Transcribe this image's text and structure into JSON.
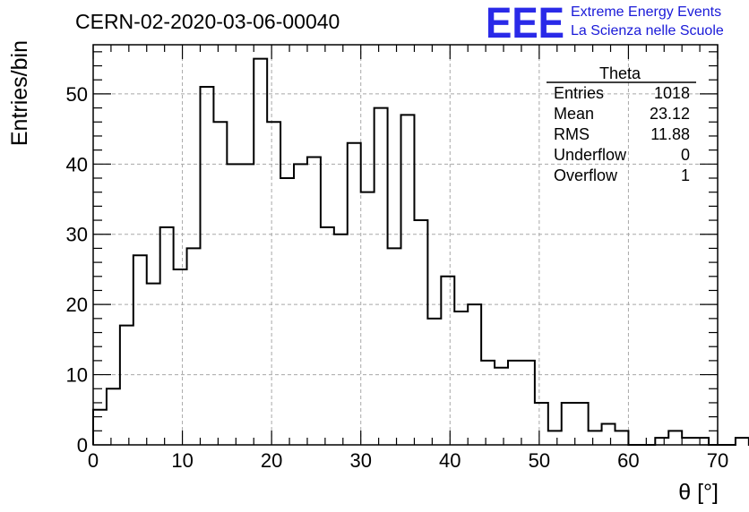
{
  "chart_data": {
    "type": "bar",
    "title": "CERN-02-2020-03-06-00040",
    "xlabel": "θ [°]",
    "ylabel": "Entries/bin",
    "xlim": [
      0,
      70
    ],
    "ylim": [
      0,
      57
    ],
    "grid": true,
    "bin_width": 1.5,
    "x_ticks": [
      0,
      10,
      20,
      30,
      40,
      50,
      60,
      70
    ],
    "y_ticks": [
      0,
      10,
      20,
      30,
      40,
      50
    ],
    "values": [
      5,
      8,
      17,
      27,
      23,
      31,
      25,
      28,
      51,
      46,
      40,
      40,
      55,
      46,
      38,
      40,
      41,
      31,
      30,
      43,
      36,
      48,
      28,
      47,
      32,
      18,
      24,
      19,
      20,
      12,
      11,
      12,
      12,
      6,
      2,
      6,
      6,
      2,
      3,
      2,
      0,
      0,
      1,
      2,
      1,
      1,
      0,
      0,
      1,
      0
    ]
  },
  "stats_box": {
    "title": "Theta",
    "rows": [
      {
        "label": "Entries",
        "value": "1018"
      },
      {
        "label": "Mean",
        "value": "23.12"
      },
      {
        "label": "RMS",
        "value": "11.88"
      },
      {
        "label": "Underflow",
        "value": "0"
      },
      {
        "label": "Overflow",
        "value": "1"
      }
    ]
  },
  "logo": {
    "mark": "EEE",
    "line1": "Extreme Energy Events",
    "line2": "La Scienza nelle Scuole",
    "color": "#2a2ae8"
  }
}
